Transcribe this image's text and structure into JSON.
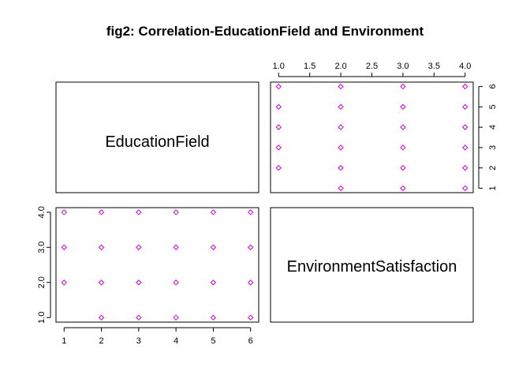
{
  "chart_data": {
    "type": "scatter",
    "title": "fig2: Correlation-EducationField and Environment",
    "variables": [
      "EducationField",
      "EnvironmentSatisfaction"
    ],
    "point_color": "#d600d6",
    "marker": "diamond-open",
    "variable_ranges": {
      "EducationField": [
        1,
        6
      ],
      "EnvironmentSatisfaction": [
        1,
        4
      ]
    },
    "panels": [
      {
        "position": "top-right",
        "xvar": "EnvironmentSatisfaction",
        "yvar": "EducationField",
        "x_ticks": [
          "1.0",
          "1.5",
          "2.0",
          "2.5",
          "3.0",
          "3.5",
          "4.0"
        ],
        "x_tick_values": [
          1.0,
          1.5,
          2.0,
          2.5,
          3.0,
          3.5,
          4.0
        ],
        "y_ticks": [
          "1",
          "2",
          "3",
          "4",
          "5",
          "6"
        ],
        "y_tick_values": [
          1,
          2,
          3,
          4,
          5,
          6
        ],
        "x_axis_side": "top",
        "y_axis_side": "right"
      },
      {
        "position": "bottom-left",
        "xvar": "EducationField",
        "yvar": "EnvironmentSatisfaction",
        "x_ticks": [
          "1",
          "2",
          "3",
          "4",
          "5",
          "6"
        ],
        "x_tick_values": [
          1,
          2,
          3,
          4,
          5,
          6
        ],
        "y_ticks": [
          "1.0",
          "2.0",
          "3.0",
          "4.0"
        ],
        "y_tick_values": [
          1.0,
          2.0,
          3.0,
          4.0
        ],
        "x_axis_side": "bottom",
        "y_axis_side": "left"
      }
    ],
    "points": [
      {
        "EducationField": 1,
        "EnvironmentSatisfaction": 2
      },
      {
        "EducationField": 1,
        "EnvironmentSatisfaction": 3
      },
      {
        "EducationField": 1,
        "EnvironmentSatisfaction": 4
      },
      {
        "EducationField": 2,
        "EnvironmentSatisfaction": 1
      },
      {
        "EducationField": 2,
        "EnvironmentSatisfaction": 2
      },
      {
        "EducationField": 2,
        "EnvironmentSatisfaction": 3
      },
      {
        "EducationField": 2,
        "EnvironmentSatisfaction": 4
      },
      {
        "EducationField": 3,
        "EnvironmentSatisfaction": 1
      },
      {
        "EducationField": 3,
        "EnvironmentSatisfaction": 2
      },
      {
        "EducationField": 3,
        "EnvironmentSatisfaction": 3
      },
      {
        "EducationField": 3,
        "EnvironmentSatisfaction": 4
      },
      {
        "EducationField": 4,
        "EnvironmentSatisfaction": 1
      },
      {
        "EducationField": 4,
        "EnvironmentSatisfaction": 2
      },
      {
        "EducationField": 4,
        "EnvironmentSatisfaction": 3
      },
      {
        "EducationField": 4,
        "EnvironmentSatisfaction": 4
      },
      {
        "EducationField": 5,
        "EnvironmentSatisfaction": 1
      },
      {
        "EducationField": 5,
        "EnvironmentSatisfaction": 2
      },
      {
        "EducationField": 5,
        "EnvironmentSatisfaction": 3
      },
      {
        "EducationField": 5,
        "EnvironmentSatisfaction": 4
      },
      {
        "EducationField": 6,
        "EnvironmentSatisfaction": 1
      },
      {
        "EducationField": 6,
        "EnvironmentSatisfaction": 2
      },
      {
        "EducationField": 6,
        "EnvironmentSatisfaction": 3
      },
      {
        "EducationField": 6,
        "EnvironmentSatisfaction": 4
      }
    ]
  }
}
